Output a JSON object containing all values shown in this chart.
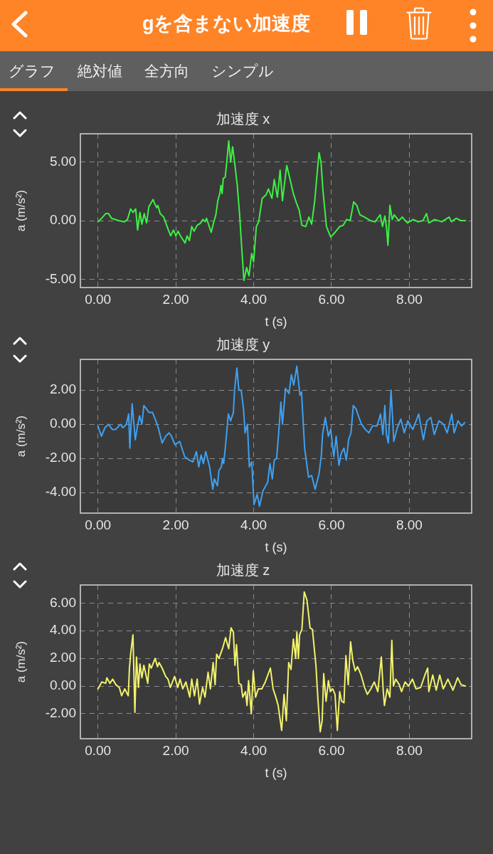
{
  "chart_data": [
    {
      "type": "other",
      "title": "gを含まない加速度",
      "annotations": [
        "グラフ",
        "絶対値",
        "全方向",
        "シンプル"
      ]
    },
    {
      "type": "line",
      "title": "加速度 x",
      "xlabel": "t (s)",
      "ylabel": "a (m/s²)",
      "grid": true,
      "xlim": [
        -0.45,
        9.6
      ],
      "xticks": [
        {
          "value": 0,
          "label": "0.00"
        },
        {
          "value": 2,
          "label": "2.00"
        },
        {
          "value": 4,
          "label": "4.00"
        },
        {
          "value": 6,
          "label": "6.00"
        },
        {
          "value": 8,
          "label": "8.00"
        }
      ],
      "ylim": [
        -5.7,
        7.4
      ],
      "yticks": [
        {
          "value": -5,
          "label": "-5.00"
        },
        {
          "value": 0,
          "label": "0.00"
        },
        {
          "value": 5,
          "label": "5.00"
        }
      ],
      "x": [
        0,
        0.07,
        0.2,
        0.27,
        0.35,
        0.53,
        0.68,
        0.76,
        0.84,
        0.9,
        0.97,
        1.02,
        1.08,
        1.13,
        1.19,
        1.25,
        1.31,
        1.42,
        1.45,
        1.51,
        1.54,
        1.6,
        1.69,
        1.81,
        1.87,
        1.94,
        2.0,
        2.06,
        2.12,
        2.24,
        2.29,
        2.35,
        2.41,
        2.47,
        2.55,
        2.64,
        2.7,
        2.76,
        2.79,
        2.91,
        2.97,
        3.03,
        3.08,
        3.13,
        3.16,
        3.19,
        3.22,
        3.27,
        3.31,
        3.36,
        3.41,
        3.46,
        3.51,
        3.58,
        3.64,
        3.69,
        3.75,
        3.82,
        3.88,
        3.95,
        4.0,
        4.07,
        4.13,
        4.22,
        4.32,
        4.38,
        4.47,
        4.53,
        4.61,
        4.68,
        4.74,
        4.85,
        4.93,
        5.02,
        5.1,
        5.17,
        5.24,
        5.34,
        5.42,
        5.49,
        5.57,
        5.63,
        5.68,
        5.73,
        5.78,
        5.87,
        5.98,
        6.09,
        6.21,
        6.3,
        6.39,
        6.48,
        6.57,
        6.65,
        6.73,
        6.85,
        7.0,
        7.12,
        7.25,
        7.31,
        7.37,
        7.41,
        7.45,
        7.5,
        7.56,
        7.61,
        7.73,
        7.82,
        7.95,
        8.1,
        8.22,
        8.35,
        8.44,
        8.5,
        8.65,
        8.83,
        9.02,
        9.08,
        9.2,
        9.32,
        9.44
      ],
      "series": [
        {
          "color": "#3cf044",
          "values": [
            -0.1,
            0.1,
            0.6,
            0.6,
            0.2,
            0.0,
            -0.1,
            0.1,
            1.0,
            0.7,
            1.0,
            -0.8,
            0.7,
            -0.3,
            0.6,
            -0.2,
            1.2,
            1.8,
            1.5,
            1.1,
            1.3,
            0.6,
            0.3,
            -0.8,
            -1.3,
            -0.8,
            -1.3,
            -0.9,
            -1.3,
            -1.9,
            -1.3,
            -1.7,
            -0.5,
            -0.9,
            -0.4,
            -0.2,
            0.1,
            -0.1,
            0.2,
            -1.0,
            -0.2,
            0.5,
            1.7,
            2.3,
            3.0,
            2.3,
            3.6,
            3.7,
            5.0,
            6.8,
            5.0,
            6.3,
            5.0,
            3.0,
            0.5,
            -2.1,
            -5.1,
            -4.0,
            -4.7,
            -2.8,
            -3.5,
            -0.5,
            -0.1,
            1.9,
            2.2,
            2.7,
            1.9,
            3.5,
            2.0,
            4.3,
            1.7,
            4.7,
            3.6,
            2.3,
            1.5,
            0.9,
            -0.4,
            -0.5,
            0.3,
            -0.3,
            1.7,
            4.0,
            5.8,
            5.0,
            2.6,
            -0.5,
            -1.4,
            -1.0,
            -0.5,
            -0.4,
            0.1,
            0.0,
            1.6,
            1.3,
            0.5,
            0.3,
            0.0,
            -0.1,
            0.5,
            -0.5,
            0.4,
            -0.5,
            -2.1,
            1.3,
            0.1,
            0.5,
            0.0,
            0.3,
            -0.2,
            0.1,
            -0.1,
            0.0,
            0.6,
            -0.2,
            0.1,
            -0.1,
            0.3,
            -0.1,
            0.2,
            0.0,
            0.0
          ]
        }
      ]
    },
    {
      "type": "line",
      "title": "加速度 y",
      "xlabel": "t (s)",
      "ylabel": "a (m/s²)",
      "grid": true,
      "xlim": [
        -0.45,
        9.6
      ],
      "xticks": [
        {
          "value": 0,
          "label": "0.00"
        },
        {
          "value": 2,
          "label": "2.00"
        },
        {
          "value": 4,
          "label": "4.00"
        },
        {
          "value": 6,
          "label": "6.00"
        },
        {
          "value": 8,
          "label": "8.00"
        }
      ],
      "ylim": [
        -5.2,
        3.8
      ],
      "yticks": [
        {
          "value": -4,
          "label": "-4.00"
        },
        {
          "value": -2,
          "label": "-2.00"
        },
        {
          "value": 0,
          "label": "0.00"
        },
        {
          "value": 2,
          "label": "2.00"
        }
      ],
      "x": [
        0,
        0.09,
        0.18,
        0.27,
        0.37,
        0.46,
        0.58,
        0.64,
        0.73,
        0.79,
        0.82,
        0.88,
        0.96,
        1.01,
        1.07,
        1.13,
        1.18,
        1.25,
        1.31,
        1.4,
        1.49,
        1.55,
        1.65,
        1.74,
        1.83,
        1.89,
        1.98,
        2.1,
        2.23,
        2.35,
        2.44,
        2.53,
        2.59,
        2.65,
        2.71,
        2.77,
        2.87,
        2.95,
        2.99,
        3.07,
        3.11,
        3.17,
        3.2,
        3.23,
        3.28,
        3.35,
        3.41,
        3.48,
        3.51,
        3.57,
        3.62,
        3.68,
        3.74,
        3.78,
        3.84,
        3.89,
        3.95,
        4.01,
        4.09,
        4.15,
        4.24,
        4.36,
        4.42,
        4.48,
        4.53,
        4.59,
        4.64,
        4.7,
        4.74,
        4.82,
        4.91,
        4.97,
        5.03,
        5.11,
        5.19,
        5.23,
        5.31,
        5.41,
        5.49,
        5.58,
        5.68,
        5.74,
        5.77,
        5.84,
        5.92,
        5.98,
        6.06,
        6.12,
        6.19,
        6.25,
        6.32,
        6.38,
        6.44,
        6.5,
        6.56,
        6.63,
        6.69,
        6.77,
        6.87,
        6.96,
        7.05,
        7.17,
        7.26,
        7.32,
        7.37,
        7.41,
        7.46,
        7.53,
        7.6,
        7.69,
        7.78,
        7.87,
        7.96,
        8.09,
        8.24,
        8.36,
        8.45,
        8.55,
        8.64,
        8.76,
        8.88,
        8.97,
        9.09,
        9.15,
        9.25,
        9.34,
        9.42
      ],
      "series": [
        {
          "color": "#3ea0f2",
          "values": [
            -0.1,
            -0.7,
            -0.2,
            0.0,
            -0.3,
            -0.3,
            0.0,
            -0.2,
            0.0,
            0.6,
            -1.4,
            1.2,
            -0.9,
            -0.2,
            0.5,
            0.0,
            1.1,
            0.9,
            0.7,
            0.7,
            0.2,
            -0.2,
            -1.1,
            -0.7,
            -0.5,
            -0.7,
            -1.2,
            -1.0,
            -1.9,
            -2.1,
            -2.2,
            -1.6,
            -2.5,
            -1.8,
            -2.3,
            -1.6,
            -2.5,
            -3.8,
            -3.2,
            -3.6,
            -2.7,
            -2.5,
            -2.0,
            -2.3,
            -1.2,
            0.6,
            0.2,
            0.7,
            2.0,
            3.3,
            2.0,
            2.0,
            0.9,
            -0.5,
            0.0,
            -2.5,
            -2.2,
            -4.7,
            -4.1,
            -4.8,
            -3.9,
            -3.4,
            -2.3,
            -3.2,
            -2.1,
            -2.0,
            -0.6,
            1.3,
            0.0,
            2.1,
            1.8,
            2.9,
            2.3,
            3.4,
            1.7,
            1.9,
            -1.4,
            -3.1,
            -3.0,
            -3.8,
            -2.9,
            -1.8,
            -0.6,
            0.4,
            -0.7,
            -0.3,
            -1.9,
            -0.7,
            -2.4,
            -1.7,
            -1.4,
            -2.1,
            -0.9,
            -0.5,
            1.1,
            0.9,
            0.5,
            0.0,
            -0.3,
            -0.5,
            -0.1,
            -0.1,
            0.6,
            -0.6,
            1.1,
            -0.6,
            -1.1,
            2.0,
            -1.0,
            -0.2,
            0.3,
            -0.5,
            0.2,
            -0.3,
            0.6,
            -0.9,
            0.2,
            0.4,
            -0.6,
            0.2,
            0.0,
            -0.5,
            0.6,
            -0.5,
            0.2,
            -0.1,
            0.1
          ]
        }
      ]
    },
    {
      "type": "line",
      "title": "加速度 z",
      "xlabel": "t (s)",
      "ylabel": "a (m/s²)",
      "grid": true,
      "xlim": [
        -0.45,
        9.6
      ],
      "xticks": [
        {
          "value": 0,
          "label": "0.00"
        },
        {
          "value": 2,
          "label": "2.00"
        },
        {
          "value": 4,
          "label": "4.00"
        },
        {
          "value": 6,
          "label": "6.00"
        },
        {
          "value": 8,
          "label": "8.00"
        }
      ],
      "ylim": [
        -3.8,
        7.3
      ],
      "yticks": [
        {
          "value": -2,
          "label": "-2.00"
        },
        {
          "value": 0,
          "label": "0.00"
        },
        {
          "value": 2,
          "label": "2.00"
        },
        {
          "value": 4,
          "label": "4.00"
        },
        {
          "value": 6,
          "label": "6.00"
        }
      ],
      "x": [
        0,
        0.1,
        0.2,
        0.23,
        0.31,
        0.38,
        0.46,
        0.55,
        0.61,
        0.69,
        0.78,
        0.81,
        0.84,
        0.9,
        0.95,
        0.99,
        1.04,
        1.08,
        1.13,
        1.18,
        1.22,
        1.28,
        1.32,
        1.37,
        1.47,
        1.53,
        1.57,
        1.65,
        1.74,
        1.8,
        1.86,
        1.97,
        2.05,
        2.11,
        2.18,
        2.26,
        2.36,
        2.41,
        2.48,
        2.55,
        2.61,
        2.69,
        2.75,
        2.83,
        2.89,
        2.96,
        3.01,
        3.05,
        3.11,
        3.21,
        3.28,
        3.36,
        3.42,
        3.48,
        3.52,
        3.56,
        3.62,
        3.68,
        3.72,
        3.79,
        3.83,
        3.87,
        3.94,
        3.99,
        4.05,
        4.12,
        4.21,
        4.3,
        4.43,
        4.5,
        4.57,
        4.63,
        4.72,
        4.78,
        4.84,
        4.9,
        4.96,
        5.02,
        5.08,
        5.11,
        5.15,
        5.18,
        5.24,
        5.3,
        5.37,
        5.45,
        5.51,
        5.6,
        5.65,
        5.71,
        5.76,
        5.8,
        5.86,
        5.92,
        5.97,
        6.03,
        6.09,
        6.15,
        6.21,
        6.26,
        6.32,
        6.37,
        6.43,
        6.49,
        6.55,
        6.61,
        6.67,
        6.76,
        6.85,
        6.92,
        7.01,
        7.1,
        7.19,
        7.28,
        7.33,
        7.36,
        7.43,
        7.5,
        7.55,
        7.59,
        7.65,
        7.74,
        7.8,
        7.89,
        7.98,
        8.08,
        8.17,
        8.29,
        8.4,
        8.47,
        8.5,
        8.6,
        8.69,
        8.78,
        8.87,
        8.99,
        9.12,
        9.24,
        9.33,
        9.44
      ],
      "series": [
        {
          "color": "#f2f26c",
          "values": [
            -0.2,
            0.3,
            0.2,
            0.6,
            0.2,
            0.5,
            0.1,
            -0.1,
            -0.7,
            -0.2,
            -0.7,
            1.3,
            2.3,
            3.7,
            -1.9,
            2.1,
            -0.1,
            1.6,
            0.6,
            1.5,
            1.0,
            0.2,
            1.6,
            1.3,
            2.0,
            1.4,
            1.7,
            1.3,
            0.7,
            0.5,
            -0.1,
            0.7,
            -0.1,
            0.5,
            -0.2,
            0.3,
            -0.8,
            0.5,
            -0.7,
            0.5,
            -1.3,
            -0.1,
            -0.8,
            1.0,
            -0.2,
            1.7,
            0.1,
            2.3,
            2.0,
            2.8,
            3.5,
            2.7,
            4.2,
            3.9,
            1.5,
            3.0,
            0.2,
            0.1,
            -0.8,
            -0.4,
            -1.4,
            0.4,
            -2.0,
            1.1,
            -0.8,
            -0.2,
            -0.2,
            0.3,
            1.3,
            -0.2,
            -0.8,
            -1.4,
            -3.2,
            -0.6,
            -2.5,
            1.7,
            1.2,
            3.4,
            2.0,
            3.9,
            2.0,
            3.7,
            4.1,
            6.8,
            6.2,
            4.2,
            4.1,
            1.5,
            -0.9,
            -3.3,
            -2.5,
            0.9,
            -1.1,
            0.4,
            -0.4,
            -0.2,
            -0.6,
            -3.2,
            -0.4,
            -1.1,
            -1.2,
            2.2,
            0.1,
            3.2,
            1.8,
            1.1,
            1.4,
            0.8,
            -0.1,
            -0.6,
            -0.2,
            0.3,
            -0.4,
            2.1,
            -0.4,
            -1.4,
            -0.2,
            -0.8,
            3.3,
            0.0,
            0.5,
            0.1,
            -0.4,
            0.3,
            0.0,
            0.5,
            -0.2,
            -0.1,
            0.8,
            1.3,
            -0.4,
            0.8,
            -0.3,
            0.8,
            -0.2,
            0.5,
            -0.3,
            0.6,
            0.1,
            0.0
          ]
        }
      ]
    }
  ]
}
